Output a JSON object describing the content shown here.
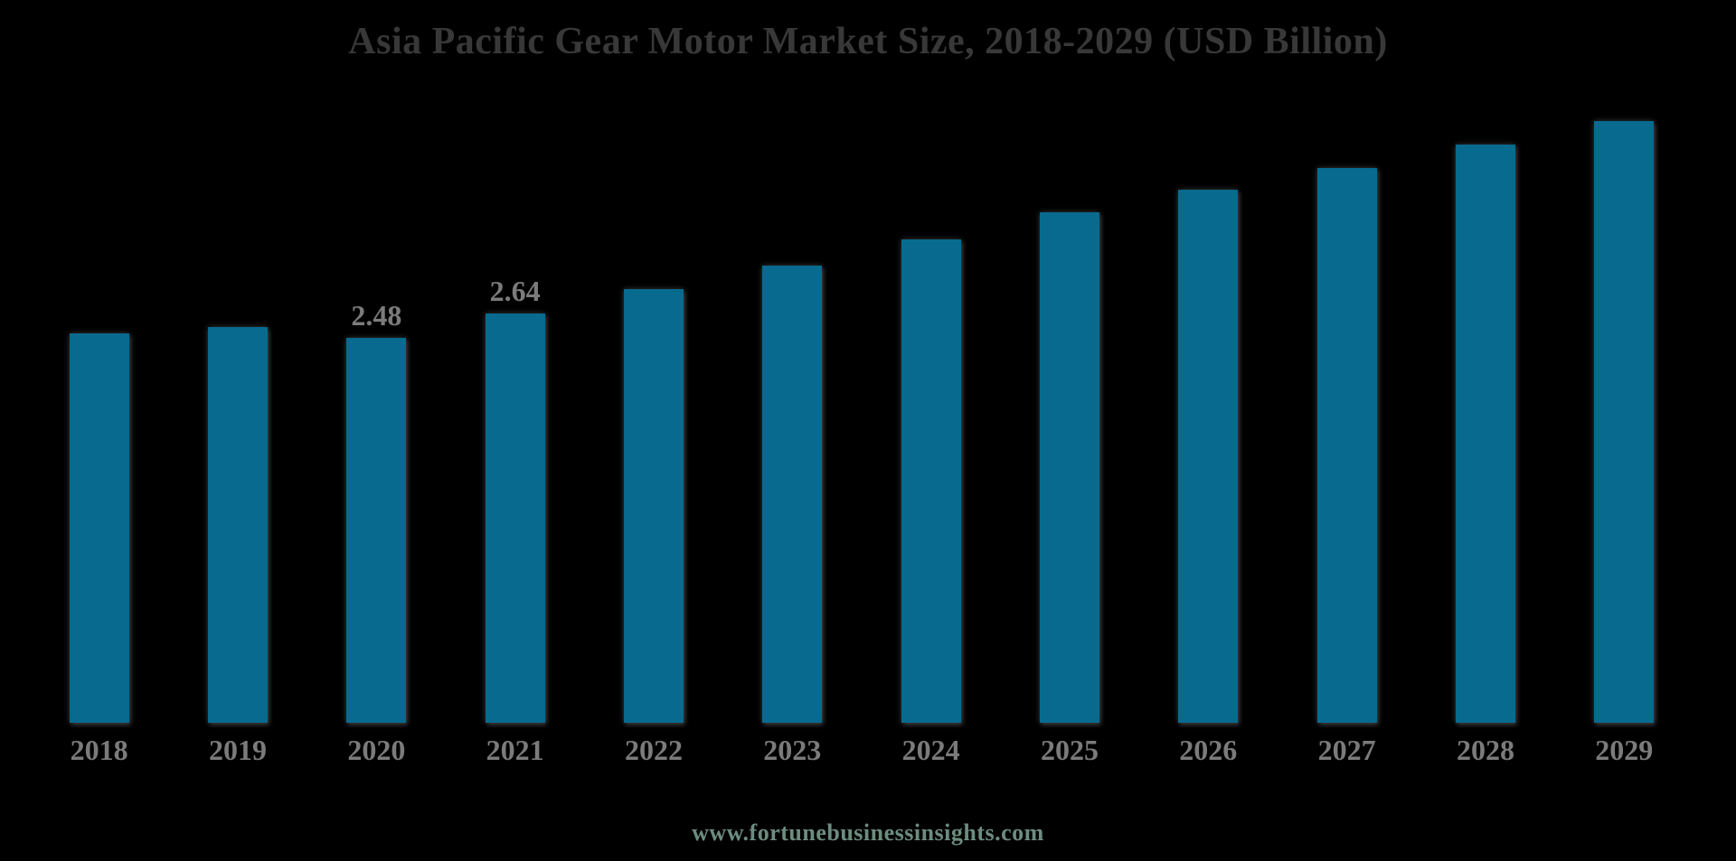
{
  "title": "Asia Pacific Gear Motor Market Size, 2018-2029 (USD Billion)",
  "footer_link": "www.fortunebusinessinsights.com",
  "colors": {
    "background": "#000000",
    "bar": "#086a8f",
    "title_text": "#383838",
    "label_text": "#7b7b7b",
    "footer_text": "#6d8c80"
  },
  "chart_data": {
    "type": "bar",
    "title": "Asia Pacific Gear Motor Market Size, 2018-2029 (USD Billion)",
    "xlabel": "",
    "ylabel": "USD Billion",
    "categories": [
      "2018",
      "2019",
      "2020",
      "2021",
      "2022",
      "2023",
      "2024",
      "2025",
      "2026",
      "2027",
      "2028",
      "2029"
    ],
    "values": [
      2.51,
      2.55,
      2.48,
      2.64,
      2.8,
      2.95,
      3.12,
      3.29,
      3.44,
      3.58,
      3.73,
      3.88
    ],
    "data_labels": {
      "2020": "2.48",
      "2021": "2.64"
    },
    "ylim": [
      0,
      4.7
    ],
    "grid": false,
    "legend": "none",
    "axes_visible": false
  }
}
